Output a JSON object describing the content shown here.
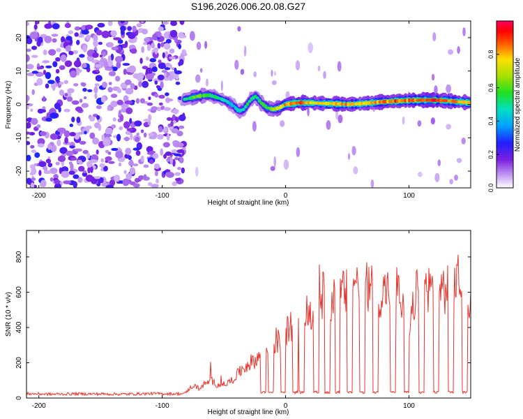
{
  "title": "S196.2026.006.20.08.G27",
  "chart_data": [
    {
      "type": "heatmap",
      "name": "spectrogram",
      "xlabel": "Height of straight line (km)",
      "ylabel": "Frequency (Hz)",
      "xlim": [
        -210,
        150
      ],
      "ylim": [
        -25,
        25
      ],
      "xticks": [
        -200,
        -100,
        0,
        100
      ],
      "yticks": [
        -20,
        -10,
        0,
        10,
        20
      ],
      "colorbar": {
        "label": "Normalized spectral amplitude",
        "range": [
          0,
          1
        ],
        "ticks": [
          0.0,
          0.2,
          0.4,
          0.6,
          0.8
        ]
      },
      "noise_region_x": [
        -210,
        -82
      ],
      "ridge": {
        "x": [
          -82,
          -70,
          -62,
          -55,
          -48,
          -42,
          -38,
          -34,
          -28,
          -24,
          -20,
          -15,
          -10,
          -5,
          0,
          10,
          20,
          30,
          40,
          50,
          60,
          70,
          80,
          90,
          100,
          110,
          120,
          130,
          140,
          150
        ],
        "freq": [
          1.5,
          2.5,
          2.8,
          2.0,
          1.0,
          -0.5,
          -2.0,
          -1.5,
          1.5,
          2.5,
          0.5,
          -1.0,
          -1.5,
          -1.0,
          0.0,
          0.5,
          0.5,
          0.3,
          0.2,
          0.0,
          0.2,
          0.5,
          0.8,
          1.0,
          1.2,
          1.3,
          1.3,
          1.1,
          0.8,
          0.5
        ],
        "amplitude": [
          0.55,
          0.7,
          0.6,
          0.55,
          0.5,
          0.45,
          0.5,
          0.55,
          0.6,
          0.55,
          0.6,
          0.65,
          0.7,
          0.75,
          0.9,
          0.95,
          0.85,
          0.8,
          0.85,
          0.9,
          0.8,
          0.85,
          0.9,
          0.95,
          0.9,
          0.95,
          1.0,
          0.9,
          0.9,
          0.85
        ]
      }
    },
    {
      "type": "line",
      "name": "snr",
      "xlabel": "Height of straight line (km)",
      "ylabel": "SNR (10 * v/v)",
      "xlim": [
        -210,
        150
      ],
      "ylim": [
        0,
        950
      ],
      "xticks": [
        -200,
        -100,
        0,
        100
      ],
      "yticks": [
        0,
        200,
        400,
        600,
        800
      ],
      "color": "#e8332b",
      "series": [
        {
          "name": "SNR",
          "x": [
            -210,
            -190,
            -170,
            -150,
            -130,
            -110,
            -90,
            -82,
            -75,
            -70,
            -65,
            -60,
            -55,
            -50,
            -45,
            -40,
            -35,
            -30,
            -25,
            -20,
            -15,
            -10,
            -5,
            0,
            5,
            10,
            15,
            20,
            25,
            30,
            35,
            40,
            45,
            50,
            55,
            60,
            65,
            70,
            75,
            80,
            85,
            90,
            95,
            100,
            105,
            110,
            115,
            120,
            125,
            130,
            135,
            140,
            145,
            150
          ],
          "y": [
            25,
            22,
            24,
            23,
            22,
            25,
            24,
            25,
            75,
            55,
            85,
            100,
            75,
            80,
            95,
            130,
            170,
            200,
            220,
            250,
            280,
            320,
            330,
            380,
            430,
            460,
            500,
            480,
            540,
            600,
            580,
            570,
            620,
            610,
            700,
            660,
            640,
            660,
            600,
            620,
            650,
            640,
            520,
            350,
            600,
            640,
            650,
            620,
            650,
            620,
            660,
            700,
            650,
            560
          ],
          "dropouts": [
            -18,
            -12,
            -2,
            8,
            13,
            25,
            34,
            42,
            52,
            62,
            73,
            87,
            98,
            110,
            122,
            134,
            145
          ]
        }
      ]
    }
  ]
}
